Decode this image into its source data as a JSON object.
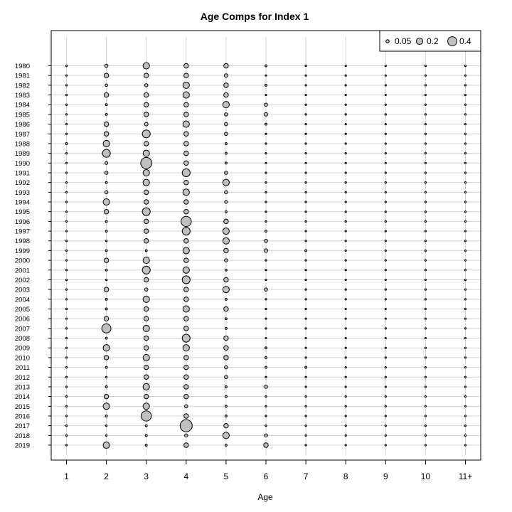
{
  "chart_data": {
    "type": "bubble",
    "title": "Age Comps for Index 1",
    "xlabel": "Age",
    "ylabel": "",
    "categories": [
      "1",
      "2",
      "3",
      "4",
      "5",
      "6",
      "7",
      "8",
      "9",
      "10",
      "11+"
    ],
    "years": [
      "1980",
      "1981",
      "1982",
      "1983",
      "1984",
      "1985",
      "1986",
      "1987",
      "1988",
      "1989",
      "1990",
      "1991",
      "1992",
      "1993",
      "1994",
      "1995",
      "1996",
      "1997",
      "1998",
      "1999",
      "2000",
      "2001",
      "2002",
      "2003",
      "2004",
      "2005",
      "2006",
      "2007",
      "2008",
      "2009",
      "2010",
      "2011",
      "2012",
      "2013",
      "2014",
      "2015",
      "2016",
      "2017",
      "2018",
      "2019"
    ],
    "values": [
      [
        0.0,
        0.05,
        0.2,
        0.1,
        0.1,
        0.02,
        0.0,
        0.0,
        0.0,
        0.0,
        0.0
      ],
      [
        0.01,
        0.1,
        0.1,
        0.1,
        0.06,
        0.0,
        0.0,
        0.0,
        0.0,
        0.0,
        0.0
      ],
      [
        0.01,
        0.03,
        0.05,
        0.2,
        0.1,
        0.02,
        0.0,
        0.0,
        0.0,
        0.0,
        0.0
      ],
      [
        0.0,
        0.1,
        0.1,
        0.2,
        0.1,
        0.01,
        0.0,
        0.0,
        0.0,
        0.0,
        0.0
      ],
      [
        0.0,
        0.02,
        0.1,
        0.1,
        0.2,
        0.05,
        0.0,
        0.0,
        0.0,
        0.0,
        0.0
      ],
      [
        0.01,
        0.02,
        0.1,
        0.1,
        0.05,
        0.06,
        0.0,
        0.0,
        0.0,
        0.0,
        0.01
      ],
      [
        0.01,
        0.1,
        0.06,
        0.2,
        0.05,
        0.02,
        0.0,
        0.0,
        0.0,
        0.0,
        0.0
      ],
      [
        0.01,
        0.1,
        0.3,
        0.1,
        0.05,
        0.0,
        0.0,
        0.0,
        0.0,
        0.0,
        0.0
      ],
      [
        0.02,
        0.2,
        0.1,
        0.1,
        0.02,
        0.0,
        0.0,
        0.0,
        0.0,
        0.0,
        0.0
      ],
      [
        0.01,
        0.3,
        0.2,
        0.1,
        0.02,
        0.0,
        0.0,
        0.0,
        0.0,
        0.0,
        0.0
      ],
      [
        0.0,
        0.04,
        0.6,
        0.1,
        0.02,
        0.0,
        0.0,
        0.0,
        0.0,
        0.0,
        0.0
      ],
      [
        0.0,
        0.05,
        0.2,
        0.3,
        0.05,
        0.0,
        0.0,
        0.0,
        0.0,
        0.0,
        0.0
      ],
      [
        0.01,
        0.02,
        0.2,
        0.1,
        0.2,
        0.01,
        0.0,
        0.0,
        0.0,
        0.0,
        0.0
      ],
      [
        0.0,
        0.05,
        0.1,
        0.2,
        0.05,
        0.0,
        0.0,
        0.0,
        0.0,
        0.0,
        0.0
      ],
      [
        0.0,
        0.2,
        0.1,
        0.1,
        0.04,
        0.0,
        0.0,
        0.0,
        0.0,
        0.0,
        0.0
      ],
      [
        0.01,
        0.1,
        0.3,
        0.1,
        0.02,
        0.0,
        0.0,
        0.0,
        0.0,
        0.0,
        0.0
      ],
      [
        0.0,
        0.02,
        0.1,
        0.5,
        0.1,
        0.0,
        0.0,
        0.0,
        0.0,
        0.0,
        0.0
      ],
      [
        0.0,
        0.02,
        0.1,
        0.3,
        0.2,
        0.02,
        0.0,
        0.0,
        0.0,
        0.0,
        0.0
      ],
      [
        0.0,
        0.01,
        0.1,
        0.1,
        0.2,
        0.05,
        0.0,
        0.0,
        0.0,
        0.0,
        0.0
      ],
      [
        0.0,
        0.02,
        0.02,
        0.2,
        0.1,
        0.06,
        0.02,
        0.0,
        0.0,
        0.0,
        0.0
      ],
      [
        0.01,
        0.1,
        0.2,
        0.1,
        0.05,
        0.0,
        0.0,
        0.0,
        0.0,
        0.0,
        0.0
      ],
      [
        0.0,
        0.02,
        0.3,
        0.2,
        0.02,
        0.0,
        0.0,
        0.0,
        0.0,
        0.0,
        0.0
      ],
      [
        0.0,
        0.01,
        0.1,
        0.3,
        0.1,
        0.01,
        0.0,
        0.0,
        0.0,
        0.0,
        0.0
      ],
      [
        0.0,
        0.1,
        0.05,
        0.1,
        0.2,
        0.05,
        0.0,
        0.0,
        0.0,
        0.0,
        0.0
      ],
      [
        0.0,
        0.02,
        0.2,
        0.1,
        0.02,
        0.0,
        0.0,
        0.0,
        0.0,
        0.0,
        0.0
      ],
      [
        0.0,
        0.02,
        0.1,
        0.2,
        0.1,
        0.01,
        0.0,
        0.0,
        0.0,
        0.0,
        0.0
      ],
      [
        0.01,
        0.1,
        0.1,
        0.1,
        0.02,
        0.0,
        0.0,
        0.0,
        0.0,
        0.0,
        0.0
      ],
      [
        0.0,
        0.4,
        0.2,
        0.1,
        0.02,
        0.0,
        0.0,
        0.0,
        0.0,
        0.0,
        0.0
      ],
      [
        0.0,
        0.02,
        0.1,
        0.3,
        0.1,
        0.0,
        0.0,
        0.0,
        0.0,
        0.0,
        0.0
      ],
      [
        0.0,
        0.2,
        0.1,
        0.2,
        0.1,
        0.02,
        0.0,
        0.0,
        0.0,
        0.0,
        0.0
      ],
      [
        0.0,
        0.1,
        0.2,
        0.1,
        0.1,
        0.02,
        0.0,
        0.0,
        0.0,
        0.0,
        0.0
      ],
      [
        0.0,
        0.02,
        0.1,
        0.1,
        0.05,
        0.02,
        0.02,
        0.0,
        0.0,
        0.0,
        0.0
      ],
      [
        0.0,
        0.01,
        0.1,
        0.1,
        0.05,
        0.0,
        0.0,
        0.0,
        0.0,
        0.0,
        0.0
      ],
      [
        0.0,
        0.02,
        0.2,
        0.1,
        0.02,
        0.05,
        0.0,
        0.0,
        0.0,
        0.0,
        0.0
      ],
      [
        0.0,
        0.1,
        0.1,
        0.1,
        0.02,
        0.0,
        0.0,
        0.0,
        0.0,
        0.0,
        0.0
      ],
      [
        0.0,
        0.2,
        0.2,
        0.05,
        0.02,
        0.0,
        0.0,
        0.0,
        0.0,
        0.0,
        0.0
      ],
      [
        0.0,
        0.02,
        0.5,
        0.1,
        0.02,
        0.0,
        0.0,
        0.0,
        0.0,
        0.0,
        0.0
      ],
      [
        0.0,
        0.01,
        0.02,
        0.7,
        0.1,
        0.0,
        0.0,
        0.0,
        0.0,
        0.0,
        0.0
      ],
      [
        0.0,
        0.01,
        0.02,
        0.05,
        0.2,
        0.05,
        0.0,
        0.0,
        0.0,
        0.0,
        0.0
      ],
      [
        0.0,
        0.2,
        0.02,
        0.1,
        0.02,
        0.1,
        0.0,
        0.0,
        0.0,
        0.0,
        0.0
      ]
    ],
    "legend": {
      "placement": "top-right",
      "items": [
        {
          "label": "0.05",
          "value": 0.05
        },
        {
          "label": "0.2",
          "value": 0.2
        },
        {
          "label": "0.4",
          "value": 0.4
        }
      ]
    },
    "grid": true,
    "colors": {
      "bubble_fill": "#c0c0c0",
      "bubble_stroke": "#000000",
      "grid": "#d3d3d3",
      "frame": "#000000"
    }
  }
}
